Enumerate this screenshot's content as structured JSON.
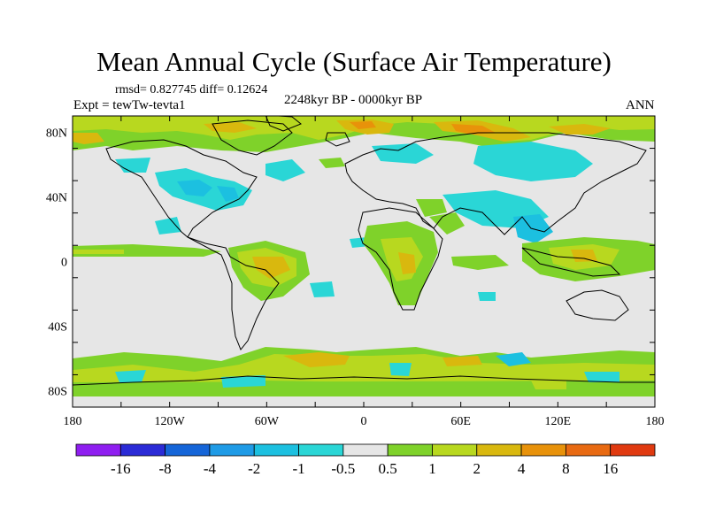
{
  "title": "Mean Annual Cycle (Surface Air Temperature)",
  "stats": "rmsd= 0.827745 diff= 0.12624",
  "experiment": "Expt = tewTw-tevta1",
  "period": "2248kyr BP - 0000kyr BP",
  "season": "ANN",
  "lat_ticks": [
    "80N",
    "40N",
    "0",
    "40S",
    "80S"
  ],
  "lon_ticks": [
    "180",
    "120W",
    "60W",
    "0",
    "60E",
    "120E",
    "180"
  ],
  "colorbar": {
    "colors": [
      "#8f1ef0",
      "#2b2bd6",
      "#1565d8",
      "#1f9be6",
      "#1cc0e0",
      "#2ad6d6",
      "#e6e6e6",
      "#7fd22a",
      "#b8d81f",
      "#d9b80e",
      "#e8920a",
      "#e86a12",
      "#e03a10"
    ],
    "labels": [
      "-16",
      "-8",
      "-4",
      "-2",
      "-1",
      "-0.5",
      "0.5",
      "1",
      "2",
      "4",
      "8",
      "16"
    ]
  }
}
